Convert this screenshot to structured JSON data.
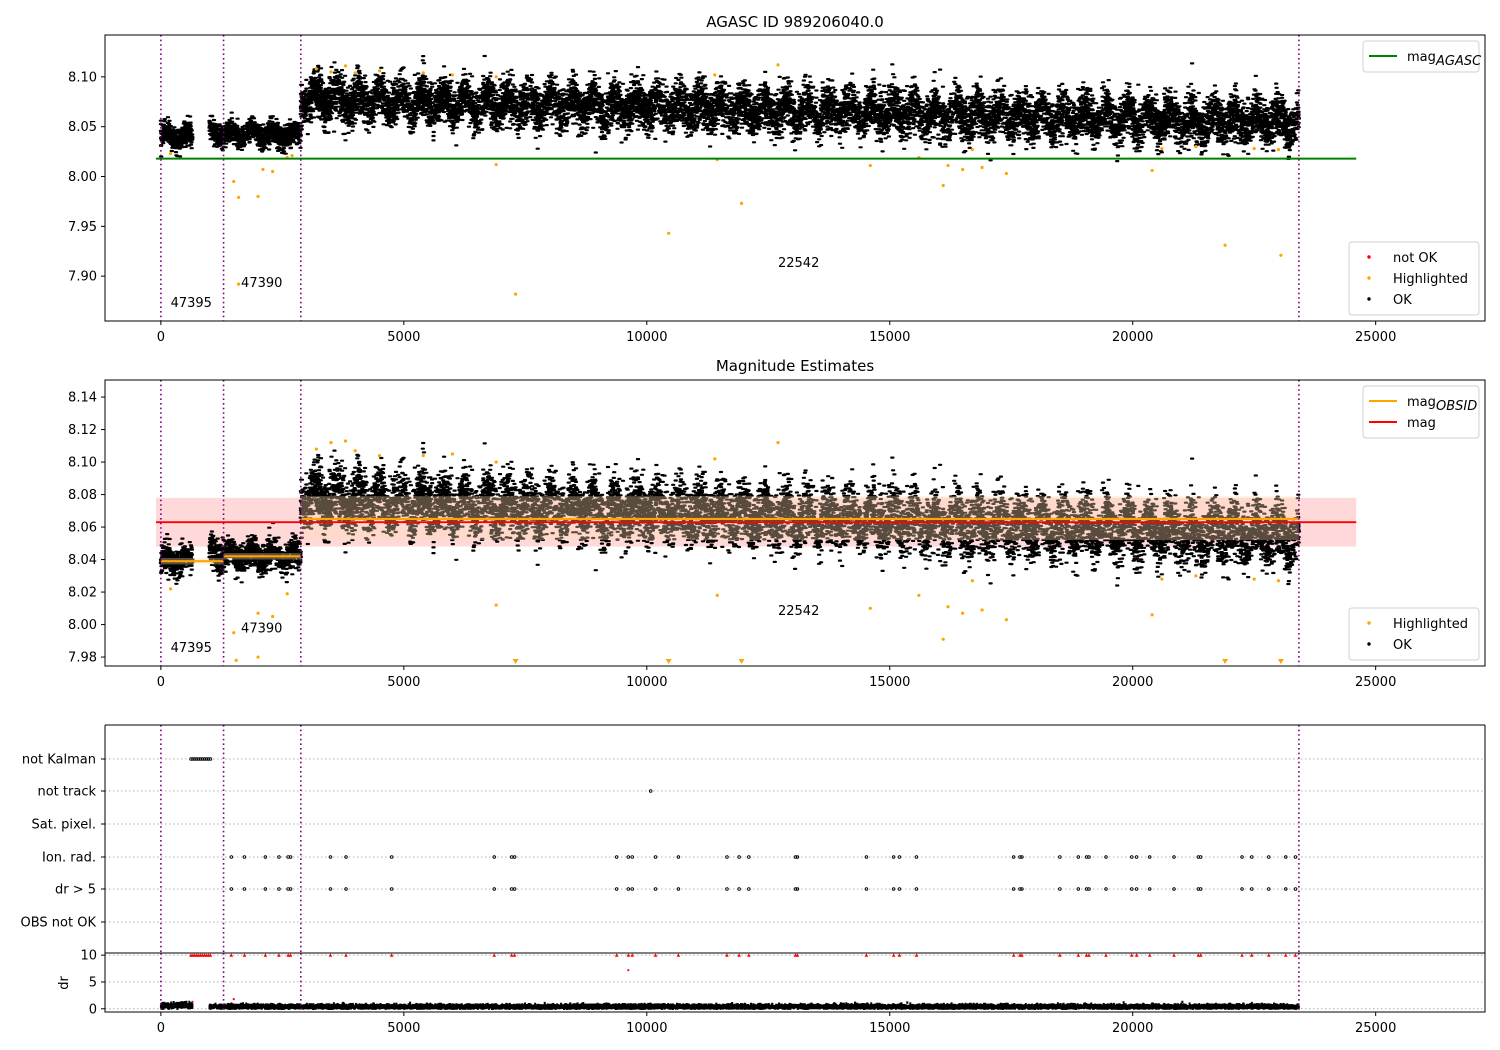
{
  "figure": {
    "colors": {
      "ok": "#000000",
      "highlighted": "#ffa500",
      "not_ok": "#ff0000",
      "mag_agasc": "#008000",
      "mag": "#ff0000",
      "mag_obsid": "#ffa500",
      "boundary": "#800080",
      "band_mag": "#ffcccc",
      "band_obsid": "#ffd9b3"
    }
  },
  "chart_data": [
    {
      "type": "scatter",
      "title": "AGASC ID 989206040.0",
      "xlabel": "",
      "ylabel": "",
      "xlim": [
        -1150,
        27250
      ],
      "ylim": [
        7.855,
        8.142
      ],
      "xticks": [
        0,
        5000,
        10000,
        15000,
        20000,
        25000
      ],
      "yticks": [
        7.9,
        7.95,
        8.0,
        8.05,
        8.1
      ],
      "ytick_labels": [
        "7.90",
        "7.95",
        "8.00",
        "8.05",
        "8.10"
      ],
      "grid": false,
      "obs_boundaries": [
        0,
        1290,
        2880,
        23420
      ],
      "obsid_labels": [
        {
          "text": "47395",
          "x": 200,
          "y": 7.869
        },
        {
          "text": "47390",
          "x": 1650,
          "y": 7.889
        },
        {
          "text": "22542",
          "x": 12700,
          "y": 7.909
        }
      ],
      "lines": [
        {
          "name": "mag_AGASC",
          "y": 8.018,
          "x": [
            -100,
            24600
          ],
          "color": "#008000"
        }
      ],
      "segments": [
        {
          "x": [
            0,
            650
          ],
          "center": 8.04,
          "spread": 0.013
        },
        {
          "x": [
            1000,
            1290
          ],
          "center": 8.044,
          "spread": 0.013
        },
        {
          "x": [
            1290,
            2880
          ],
          "center": 8.042,
          "spread": 0.013
        },
        {
          "x": [
            2880,
            23420
          ],
          "center_start": 8.078,
          "center_end": 8.054,
          "spread": 0.025
        }
      ],
      "highlighted_points": [
        [
          1500,
          7.995
        ],
        [
          1600,
          7.979
        ],
        [
          2000,
          7.98
        ],
        [
          2100,
          8.007
        ],
        [
          2300,
          8.005
        ],
        [
          1600,
          7.892
        ],
        [
          6900,
          8.012
        ],
        [
          7300,
          7.882
        ],
        [
          10450,
          7.943
        ],
        [
          11450,
          8.017
        ],
        [
          11950,
          7.973
        ],
        [
          14600,
          8.011
        ],
        [
          15600,
          8.019
        ],
        [
          16100,
          7.991
        ],
        [
          16200,
          8.011
        ],
        [
          16500,
          8.007
        ],
        [
          16700,
          8.027
        ],
        [
          16900,
          8.009
        ],
        [
          17400,
          8.003
        ],
        [
          20400,
          8.006
        ],
        [
          21900,
          7.931
        ],
        [
          23050,
          7.921
        ],
        [
          200,
          8.023
        ],
        [
          2600,
          8.019
        ],
        [
          2700,
          8.021
        ],
        [
          3200,
          8.108
        ],
        [
          3500,
          8.105
        ],
        [
          3800,
          8.111
        ],
        [
          4000,
          8.104
        ],
        [
          4500,
          8.106
        ],
        [
          5400,
          8.104
        ],
        [
          6000,
          8.102
        ],
        [
          6900,
          8.1
        ],
        [
          11400,
          8.102
        ],
        [
          12700,
          8.112
        ],
        [
          20600,
          8.028
        ],
        [
          21300,
          8.03
        ],
        [
          22500,
          8.028
        ],
        [
          23000,
          8.027
        ]
      ],
      "not_ok_points": [],
      "legends": [
        {
          "position": "upper-right",
          "entries": [
            {
              "label": "mag",
              "sub": "AGASC",
              "kind": "line",
              "color": "#008000"
            }
          ]
        },
        {
          "position": "lower-right",
          "entries": [
            {
              "label": "not OK",
              "kind": "point",
              "color": "#ff0000"
            },
            {
              "label": "Highlighted",
              "kind": "point",
              "color": "#ffa500"
            },
            {
              "label": "OK",
              "kind": "point",
              "color": "#000000"
            }
          ]
        }
      ]
    },
    {
      "type": "scatter",
      "title": "Magnitude Estimates",
      "xlabel": "",
      "ylabel": "",
      "xlim": [
        -1150,
        27250
      ],
      "ylim": [
        7.9745,
        8.1505
      ],
      "xticks": [
        0,
        5000,
        10000,
        15000,
        20000,
        25000
      ],
      "yticks": [
        7.98,
        8.0,
        8.02,
        8.04,
        8.06,
        8.08,
        8.1,
        8.12,
        8.14
      ],
      "ytick_labels": [
        "7.98",
        "8.00",
        "8.02",
        "8.04",
        "8.06",
        "8.08",
        "8.10",
        "8.12",
        "8.14"
      ],
      "grid": false,
      "obs_boundaries": [
        0,
        1290,
        2880,
        23420
      ],
      "obsid_labels": [
        {
          "text": "47395",
          "x": 200,
          "y": 7.983
        },
        {
          "text": "47390",
          "x": 1650,
          "y": 7.995
        },
        {
          "text": "22542",
          "x": 12700,
          "y": 8.006
        }
      ],
      "lines": [
        {
          "name": "mag",
          "y": 8.063,
          "x": [
            -100,
            24600
          ],
          "color": "#ff0000"
        }
      ],
      "bands": [
        {
          "name": "mag",
          "y": [
            8.048,
            8.078
          ],
          "x": [
            -100,
            24600
          ],
          "color": "#ffcccc"
        }
      ],
      "obsid_levels": [
        {
          "x": [
            0,
            1290
          ],
          "y": 8.039,
          "band": [
            8.037,
            8.041
          ]
        },
        {
          "x": [
            1290,
            2880
          ],
          "y": 8.042,
          "band": [
            8.04,
            8.044
          ]
        },
        {
          "x": [
            2880,
            23420
          ],
          "y": 8.065,
          "band": [
            8.052,
            8.079
          ]
        }
      ],
      "segments": [
        {
          "x": [
            0,
            650
          ],
          "center": 8.04,
          "spread": 0.01
        },
        {
          "x": [
            1000,
            1290
          ],
          "center": 8.044,
          "spread": 0.01
        },
        {
          "x": [
            1290,
            2880
          ],
          "center": 8.042,
          "spread": 0.01
        },
        {
          "x": [
            2880,
            23420
          ],
          "center_start": 8.078,
          "center_end": 8.054,
          "spread": 0.02
        }
      ],
      "highlighted_points": [
        [
          200,
          8.022
        ],
        [
          1500,
          7.995
        ],
        [
          1550,
          7.978
        ],
        [
          2000,
          8.007
        ],
        [
          2300,
          8.005
        ],
        [
          2000,
          7.98
        ],
        [
          2600,
          8.019
        ],
        [
          6900,
          8.012
        ],
        [
          11450,
          8.018
        ],
        [
          14600,
          8.01
        ],
        [
          15600,
          8.018
        ],
        [
          16100,
          7.991
        ],
        [
          16200,
          8.011
        ],
        [
          16500,
          8.007
        ],
        [
          16700,
          8.027
        ],
        [
          16900,
          8.009
        ],
        [
          17400,
          8.003
        ],
        [
          20400,
          8.006
        ],
        [
          3200,
          8.108
        ],
        [
          3500,
          8.112
        ],
        [
          3800,
          8.113
        ],
        [
          4000,
          8.107
        ],
        [
          4500,
          8.104
        ],
        [
          5400,
          8.104
        ],
        [
          6000,
          8.105
        ],
        [
          6900,
          8.1
        ],
        [
          11400,
          8.102
        ],
        [
          12700,
          8.112
        ],
        [
          20600,
          8.028
        ],
        [
          21300,
          8.03
        ],
        [
          22500,
          8.028
        ],
        [
          23000,
          8.027
        ]
      ],
      "clipped_markers_x": [
        7300,
        10450,
        11950,
        21900,
        23050
      ],
      "legends": [
        {
          "position": "upper-right",
          "entries": [
            {
              "label": "mag",
              "sub": "OBSID",
              "kind": "line",
              "color": "#ffa500"
            },
            {
              "label": "mag",
              "kind": "line",
              "color": "#ff0000"
            }
          ]
        },
        {
          "position": "lower-right",
          "entries": [
            {
              "label": "Highlighted",
              "kind": "point",
              "color": "#ffa500"
            },
            {
              "label": "OK",
              "kind": "point",
              "color": "#000000"
            }
          ]
        }
      ]
    },
    {
      "type": "scatter",
      "title": "",
      "xlabel": "",
      "ylabel": "",
      "xlim": [
        -1150,
        27250
      ],
      "xticks": [
        0,
        5000,
        10000,
        15000,
        20000,
        25000
      ],
      "obs_boundaries": [
        0,
        1290,
        2880,
        23420
      ],
      "flag_rows": [
        "not Kalman",
        "not track",
        "Sat. pixel.",
        "Ion. rad.",
        "dr > 5",
        "OBS not OK"
      ],
      "flag_events": {
        "not Kalman": [
          620,
          660,
          700,
          740,
          780,
          820,
          860,
          900,
          940,
          980,
          1020
        ],
        "not track": [
          10080
        ],
        "Sat. pixel.": [],
        "Ion. rad.": [
          1450,
          1720,
          2150,
          2430,
          2620,
          2670,
          3490,
          3810,
          4750,
          6860,
          7220,
          7280,
          9380,
          9620,
          9700,
          10180,
          10650,
          11650,
          11900,
          12100,
          13060,
          13100,
          14520,
          15080,
          15200,
          15550,
          17550,
          17680,
          17720,
          18500,
          18880,
          19050,
          19100,
          19450,
          19980,
          20080,
          20350,
          20850,
          21350,
          21400,
          22250,
          22450,
          22800,
          23150,
          23350
        ],
        "dr > 5": [
          1450,
          1720,
          2150,
          2430,
          2620,
          2670,
          3490,
          3810,
          4750,
          6860,
          7220,
          7280,
          9380,
          9620,
          9700,
          10180,
          10650,
          11650,
          11900,
          12100,
          13060,
          13100,
          14520,
          15080,
          15200,
          15550,
          17550,
          17680,
          17720,
          18500,
          18880,
          19050,
          19100,
          19450,
          19980,
          20080,
          20350,
          20850,
          21350,
          21400,
          22250,
          22450,
          22800,
          23150,
          23350
        ],
        "OBS not OK": []
      }
    },
    {
      "type": "scatter",
      "title": "",
      "xlabel": "",
      "ylabel": "dr",
      "xlim": [
        -1150,
        27250
      ],
      "ylim": [
        -0.6,
        10.4
      ],
      "xticks": [
        0,
        5000,
        10000,
        15000,
        20000,
        25000
      ],
      "xtick_labels": [
        "0",
        "5000",
        "10000",
        "15000",
        "20000",
        "25000"
      ],
      "yticks": [
        0,
        5,
        10
      ],
      "ytick_labels": [
        "0",
        "5",
        "10"
      ],
      "grid": true,
      "obs_boundaries": [
        0,
        1290,
        2880,
        23420
      ],
      "dr_clip_value": 10,
      "dr_clipped_x": [
        620,
        660,
        700,
        740,
        780,
        820,
        860,
        900,
        940,
        980,
        1020,
        1450,
        1720,
        2150,
        2430,
        2620,
        2670,
        3490,
        3810,
        4750,
        6860,
        7220,
        7280,
        9380,
        9620,
        9700,
        10180,
        10650,
        11650,
        11900,
        12100,
        13060,
        13100,
        14520,
        15080,
        15200,
        15550,
        17550,
        17680,
        17720,
        18500,
        18880,
        19050,
        19100,
        19450,
        19980,
        20080,
        20350,
        20850,
        21350,
        21400,
        22250,
        22450,
        22800,
        23150,
        23350
      ],
      "dr_outliers": [
        [
          9620,
          7.2
        ],
        [
          1500,
          1.8
        ],
        [
          650,
          1.3
        ]
      ],
      "dr_segments": [
        {
          "x": [
            0,
            650
          ],
          "center": 0.6,
          "spread": 0.6
        },
        {
          "x": [
            1000,
            23420
          ],
          "center": 0.4,
          "spread": 0.5
        }
      ]
    }
  ]
}
